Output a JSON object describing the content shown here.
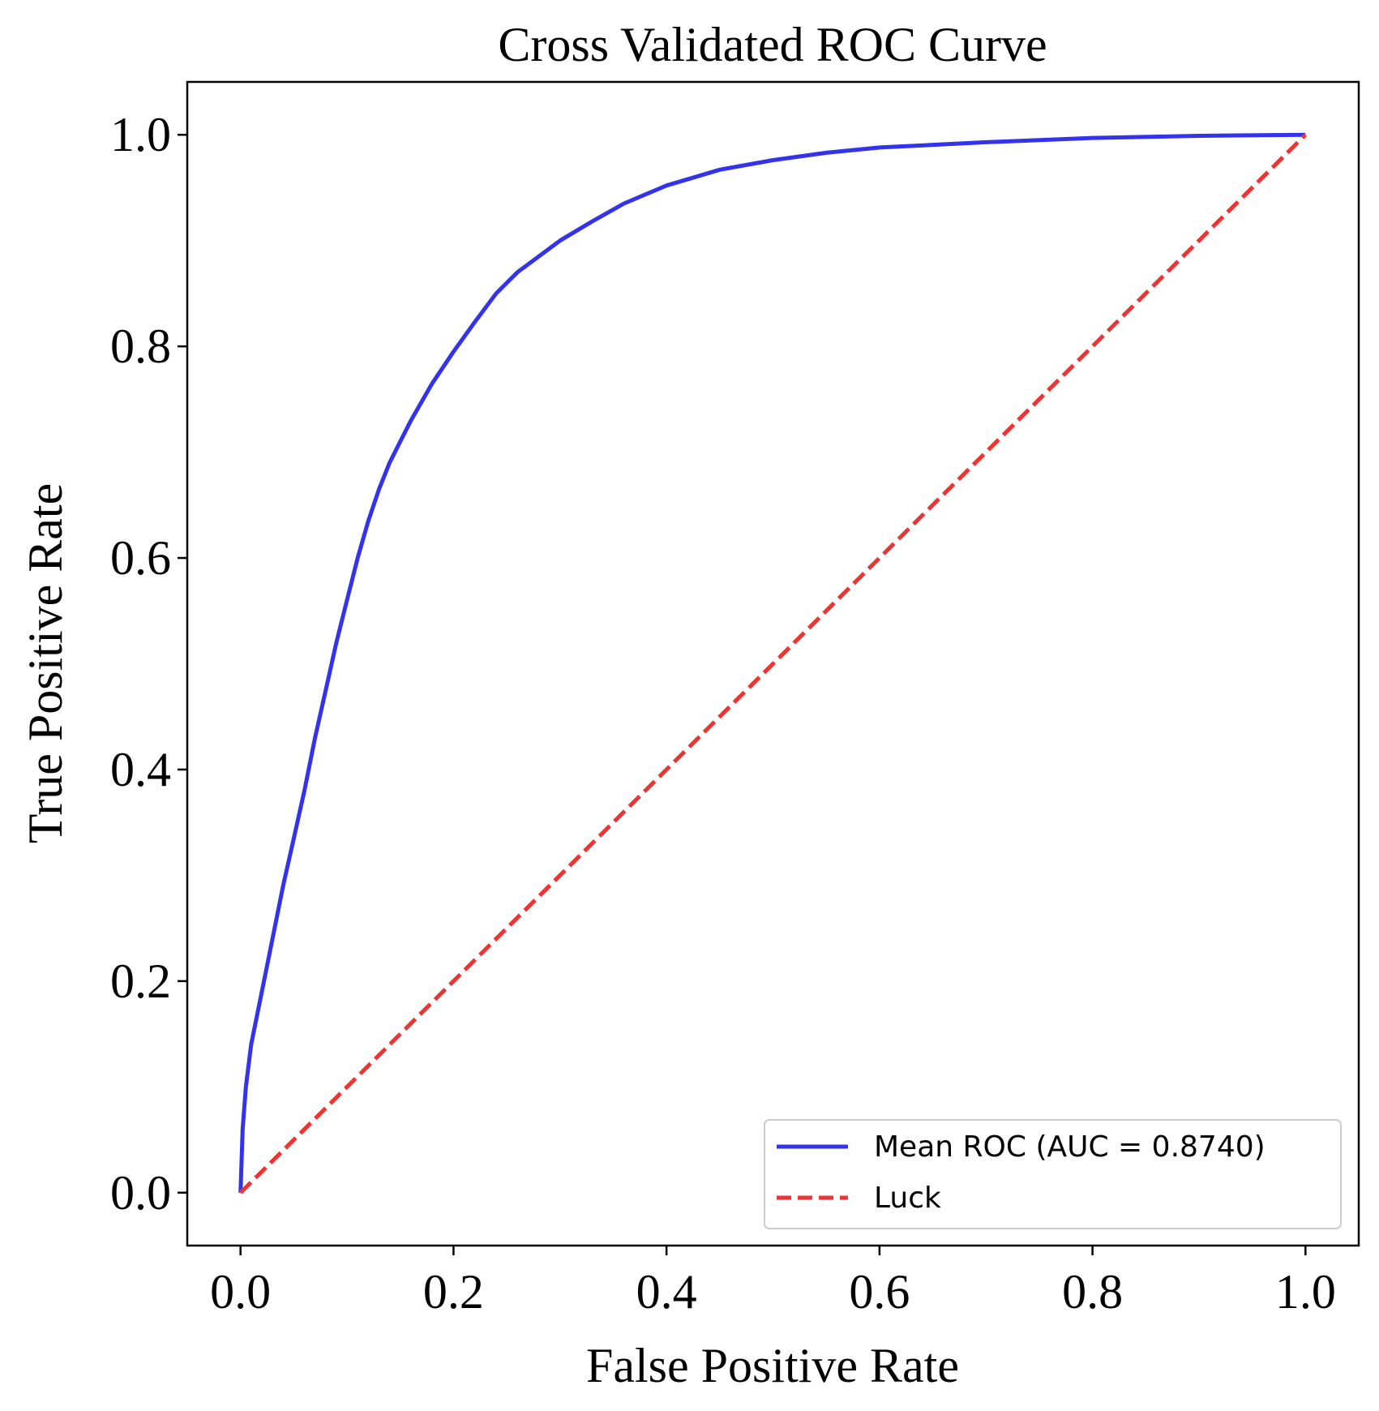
{
  "chart_data": {
    "type": "line",
    "title": "Cross Validated ROC Curve",
    "xlabel": "False Positive Rate",
    "ylabel": "True Positive Rate",
    "xlim": [
      -0.05,
      1.05
    ],
    "ylim": [
      -0.05,
      1.05
    ],
    "xticks": [
      0.0,
      0.2,
      0.4,
      0.6,
      0.8,
      1.0
    ],
    "yticks": [
      0.0,
      0.2,
      0.4,
      0.6,
      0.8,
      1.0
    ],
    "xtick_labels": [
      "0.0",
      "0.2",
      "0.4",
      "0.6",
      "0.8",
      "1.0"
    ],
    "ytick_labels": [
      "0.0",
      "0.2",
      "0.4",
      "0.6",
      "0.8",
      "1.0"
    ],
    "grid": false,
    "legend_position": "lower-right",
    "series": [
      {
        "name": "Mean ROC (AUC = 0.8740)",
        "color": "#3333ee",
        "style": "solid",
        "x": [
          0.0,
          0.002,
          0.005,
          0.01,
          0.02,
          0.03,
          0.04,
          0.05,
          0.06,
          0.07,
          0.08,
          0.09,
          0.1,
          0.11,
          0.12,
          0.13,
          0.14,
          0.15,
          0.16,
          0.18,
          0.2,
          0.22,
          0.24,
          0.26,
          0.28,
          0.3,
          0.33,
          0.36,
          0.4,
          0.45,
          0.5,
          0.55,
          0.6,
          0.7,
          0.8,
          0.9,
          1.0
        ],
        "y": [
          0.0,
          0.06,
          0.1,
          0.14,
          0.19,
          0.24,
          0.29,
          0.335,
          0.38,
          0.43,
          0.475,
          0.52,
          0.56,
          0.6,
          0.635,
          0.665,
          0.69,
          0.71,
          0.73,
          0.765,
          0.795,
          0.823,
          0.85,
          0.87,
          0.885,
          0.9,
          0.918,
          0.935,
          0.952,
          0.967,
          0.976,
          0.983,
          0.988,
          0.993,
          0.997,
          0.999,
          1.0
        ]
      },
      {
        "name": "Luck",
        "color": "#ee3333",
        "style": "dashed",
        "x": [
          0.0,
          1.0
        ],
        "y": [
          0.0,
          1.0
        ]
      }
    ]
  }
}
